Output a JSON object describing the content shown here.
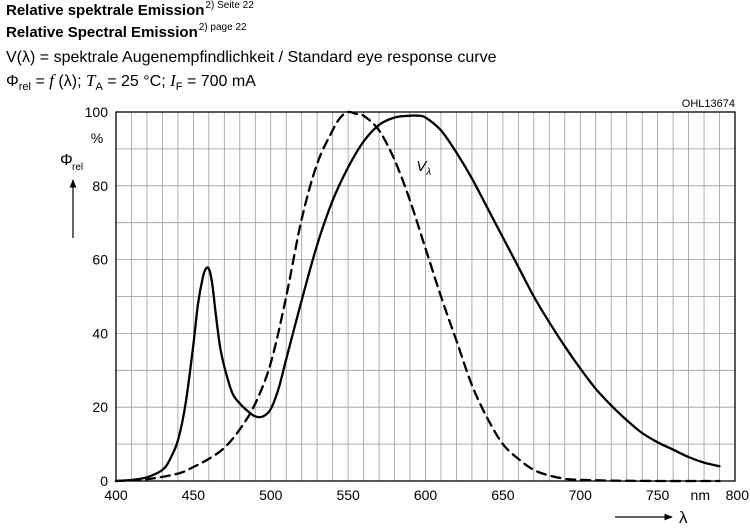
{
  "header": {
    "line1": {
      "text": "Relative spektrale Emission",
      "sup": "2) Seite 22"
    },
    "line2": {
      "text": "Relative Spectral Emission",
      "sup": "2) page 22"
    },
    "line3": "V(λ) = spektrale Augenempfindlichkeit / Standard eye response curve",
    "line4": {
      "phi": "Φ",
      "phi_sub": "rel",
      "eq1": " = ",
      "f": "f",
      "lam": " (λ); ",
      "T": "T",
      "T_sub": "A",
      "t_val": " = 25 °C; ",
      "I": "I",
      "I_sub": "F",
      "i_val": " = 700 mA"
    }
  },
  "chart_data": {
    "type": "line",
    "code": "OHL13674",
    "ylabel": {
      "symbol": "Φ",
      "sub": "rel"
    },
    "y_unit": "%",
    "xlabel": "λ",
    "x_unit": "nm",
    "xlim": [
      400,
      800
    ],
    "ylim": [
      0,
      100
    ],
    "x_ticks": [
      400,
      450,
      500,
      550,
      600,
      650,
      700,
      750,
      800
    ],
    "x_tick_labels": [
      "400",
      "450",
      "500",
      "550",
      "600",
      "650",
      "700",
      "750",
      "800"
    ],
    "y_ticks": [
      0,
      20,
      40,
      60,
      80,
      100
    ],
    "y_tick_labels": [
      "0",
      "20",
      "40",
      "60",
      "80",
      "100"
    ],
    "x_grid_step": 10,
    "y_grid_step": 10,
    "grid": true,
    "curve_label": {
      "symbol": "V",
      "sub": "λ",
      "x": 594,
      "y": 84
    },
    "series": [
      {
        "style": "solid",
        "x": [
          400,
          410,
          420,
          430,
          435,
          440,
          445,
          450,
          453,
          456,
          458,
          460,
          462,
          464,
          467,
          470,
          475,
          480,
          485,
          490,
          495,
          500,
          505,
          510,
          520,
          530,
          540,
          550,
          560,
          570,
          580,
          590,
          595,
          600,
          610,
          620,
          630,
          640,
          650,
          660,
          670,
          680,
          690,
          700,
          710,
          720,
          730,
          740,
          750,
          760,
          770,
          780,
          790
        ],
        "y": [
          0,
          0.3,
          1,
          3,
          6,
          11,
          21,
          37,
          48,
          55,
          57.5,
          57.5,
          54,
          47,
          37,
          31,
          24,
          21,
          19,
          17.5,
          17.5,
          19.5,
          25,
          33,
          49,
          64,
          76,
          85,
          92,
          96.5,
          98.5,
          99,
          99,
          98.5,
          95,
          89,
          82,
          74,
          66,
          58,
          50,
          43,
          36.5,
          30.5,
          25,
          20.5,
          16.5,
          13,
          10.5,
          8.5,
          6.5,
          5,
          4
        ]
      },
      {
        "style": "dashed",
        "x": [
          400,
          420,
          440,
          450,
          460,
          470,
          480,
          490,
          500,
          510,
          520,
          530,
          540,
          545,
          550,
          555,
          560,
          570,
          580,
          590,
          600,
          610,
          620,
          630,
          640,
          650,
          660,
          670,
          680,
          690,
          700,
          720,
          750,
          790
        ],
        "y": [
          0,
          0.5,
          2,
          3.8,
          6,
          9,
          14,
          21,
          32,
          50,
          71,
          86,
          95,
          98.5,
          100,
          99.5,
          99,
          95,
          87,
          76,
          63,
          50,
          38,
          26,
          17,
          10,
          6,
          3,
          1.5,
          0.6,
          0.3,
          0.1,
          0,
          0
        ]
      }
    ]
  }
}
